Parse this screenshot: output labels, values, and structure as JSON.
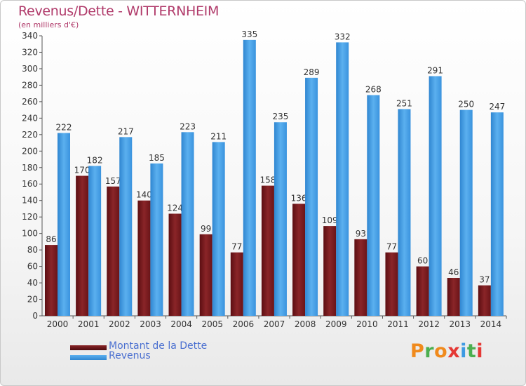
{
  "header": {
    "title": "Revenus/Dette - WITTERNHEIM",
    "subtitle": "(en milliers d'€)"
  },
  "colors": {
    "dette": "#7a1a1e",
    "revenus": "#3d9ae3",
    "axis": "#555555",
    "grid": "#cfcfcf",
    "title": "#b03a6a",
    "legend_text": "#4a6fd0"
  },
  "legend": {
    "dette_label": "Montant de la Dette",
    "revenus_label": "Revenus"
  },
  "logo": {
    "text": "Proxiti",
    "letter_colors": [
      "#f08a1c",
      "#4caf50",
      "#f08a1c",
      "#e53935",
      "#3d9ae3",
      "#4caf50",
      "#e53935"
    ]
  },
  "chart_data": {
    "type": "bar",
    "title": "Revenus/Dette - WITTERNHEIM",
    "ylabel": "(en milliers d'€)",
    "categories": [
      "2000",
      "2001",
      "2002",
      "2003",
      "2004",
      "2005",
      "2006",
      "2007",
      "2008",
      "2009",
      "2010",
      "2011",
      "2012",
      "2013",
      "2014"
    ],
    "series": [
      {
        "name": "Montant de la Dette",
        "values": [
          86,
          170,
          157,
          140,
          124,
          99,
          77,
          158,
          136,
          109,
          93,
          77,
          60,
          46,
          37
        ]
      },
      {
        "name": "Revenus",
        "values": [
          222,
          182,
          217,
          185,
          223,
          211,
          335,
          235,
          289,
          332,
          268,
          251,
          291,
          250,
          247
        ]
      }
    ],
    "ylim": [
      0,
      340
    ],
    "yticks": [
      0,
      20,
      40,
      60,
      80,
      100,
      120,
      140,
      160,
      180,
      200,
      220,
      240,
      260,
      280,
      300,
      320,
      340
    ],
    "legend_position": "bottom-left",
    "grid": false
  }
}
